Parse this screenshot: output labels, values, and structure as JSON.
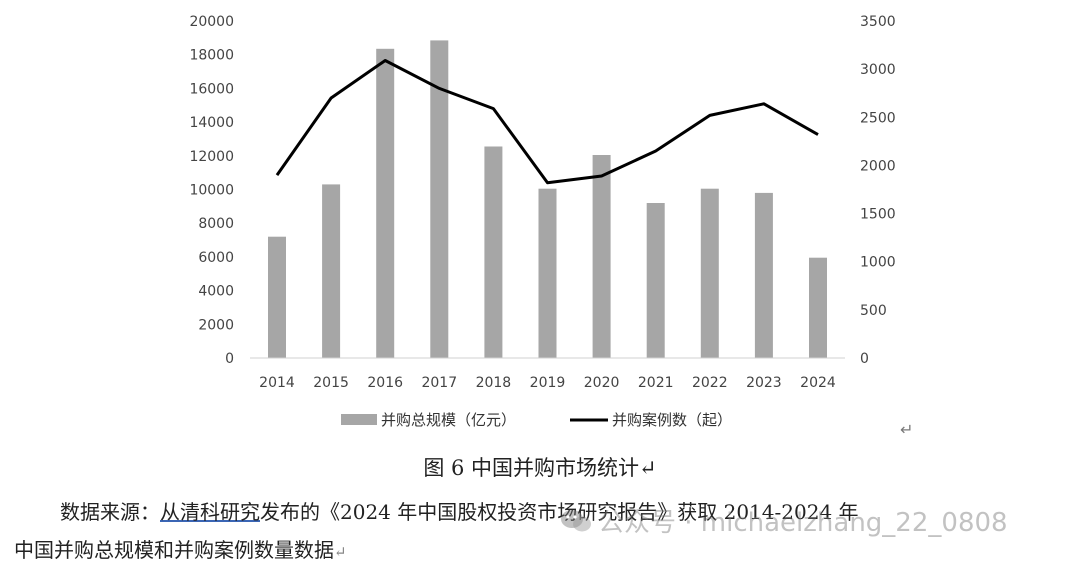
{
  "chart_data": {
    "type": "bar+line",
    "categories": [
      "2014",
      "2015",
      "2016",
      "2017",
      "2018",
      "2019",
      "2020",
      "2021",
      "2022",
      "2023",
      "2024"
    ],
    "series": [
      {
        "name": "并购总规模（亿元）",
        "type": "bar",
        "axis": "left",
        "color": "#a6a6a6",
        "values": [
          7200,
          10300,
          18350,
          18850,
          12550,
          10050,
          12050,
          9200,
          10050,
          9800,
          5950
        ]
      },
      {
        "name": "并购案例数（起）",
        "type": "line",
        "axis": "right",
        "color": "#000000",
        "values": [
          1900,
          2700,
          3090,
          2800,
          2590,
          1820,
          1890,
          2150,
          2520,
          2640,
          2320
        ]
      }
    ],
    "y_left": {
      "min": 0,
      "max": 20000,
      "ticks": [
        "0",
        "2000",
        "4000",
        "6000",
        "8000",
        "10000",
        "12000",
        "14000",
        "16000",
        "18000",
        "20000"
      ]
    },
    "y_right": {
      "min": 0,
      "max": 3500,
      "ticks": [
        "0",
        "500",
        "1000",
        "1500",
        "2000",
        "2500",
        "3000",
        "3500"
      ]
    },
    "grid": false,
    "legend_position": "bottom"
  },
  "text": {
    "return_mark": "↵",
    "caption": "图 6 中国并购市场统计↵",
    "source_prefix": "数据来源：",
    "source_link": "从清科研究",
    "source_rest": "发布的《2024 年中国股权投资市场研究报告》获取 2014-2024 年",
    "source_line2": "中国并购总规模和并购案例数量数据",
    "source_line2_mark": "↵",
    "watermark": "公众号 · michaelzhang_22_0808"
  }
}
